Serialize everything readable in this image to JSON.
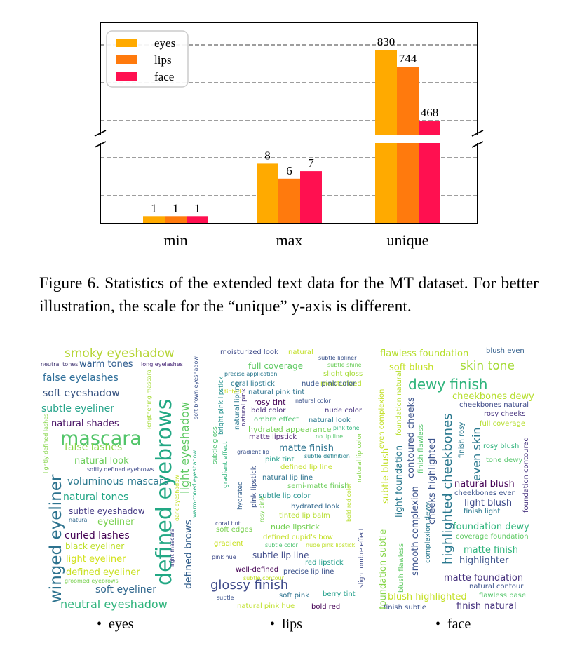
{
  "figure": {
    "caption": "Figure 6.  Statistics of the extended text data for the MT dataset. For better illustration, the scale for the “unique” y-axis is different."
  },
  "chart_data": {
    "type": "bar",
    "categories": [
      "min",
      "max",
      "unique"
    ],
    "series": [
      {
        "name": "eyes",
        "values": [
          1,
          8,
          830
        ],
        "color": "#ffaa00"
      },
      {
        "name": "lips",
        "values": [
          1,
          6,
          744
        ],
        "color": "#ff7a0d"
      },
      {
        "name": "face",
        "values": [
          1,
          7,
          468
        ],
        "color": "#ff1050"
      }
    ],
    "data_labels": [
      "1",
      "1",
      "1",
      "8",
      "6",
      "7",
      "830",
      "744",
      "468"
    ],
    "legend_position": "top-left",
    "grid": "horizontal dashed",
    "broken_axis": true,
    "note": "The unique group uses a different y scale"
  },
  "clouds": [
    {
      "label": "eyes",
      "words": [
        {
          "t": "smoky eyeshadow",
          "c": "#b5d433"
        },
        {
          "t": "warm tones",
          "c": "#2d5b8e"
        },
        {
          "t": "neutral tones",
          "c": "#3b2f6d"
        },
        {
          "t": "long eyelashes",
          "c": "#482878"
        },
        {
          "t": "false eyelashes",
          "c": "#2f6f9a"
        },
        {
          "t": "soft eyeshadow",
          "c": "#34507e"
        },
        {
          "t": "subtle eyeliner",
          "c": "#26a48a"
        },
        {
          "t": "natural shades",
          "c": "#471064"
        },
        {
          "t": "mascara",
          "c": "#52c569"
        },
        {
          "t": "false lashes",
          "c": "#8ad547"
        },
        {
          "t": "natural look",
          "c": "#6ccd5a"
        },
        {
          "t": "softly defined eyebrows",
          "c": "#3e4a89"
        },
        {
          "t": "voluminous mascara",
          "c": "#2a788e"
        },
        {
          "t": "natural tones",
          "c": "#21a685"
        },
        {
          "t": "subtle eyeshadow",
          "c": "#443983"
        },
        {
          "t": "natural",
          "c": "#31688e"
        },
        {
          "t": "eyeliner",
          "c": "#7ad151"
        },
        {
          "t": "curled lashes",
          "c": "#440154"
        },
        {
          "t": "black eyeliner",
          "c": "#bddf26"
        },
        {
          "t": "light eyeliner",
          "c": "#d2e21b"
        },
        {
          "t": "defined eyeliner",
          "c": "#c8e020"
        },
        {
          "t": "groomed eyebrows",
          "c": "#7ad151"
        },
        {
          "t": "soft eyeliner",
          "c": "#31688e"
        },
        {
          "t": "neutral eyeshadow",
          "c": "#2fb47c"
        },
        {
          "t": "winged eyeliner",
          "c": "#2c728e"
        },
        {
          "t": "defined eyebrows",
          "c": "#22a884"
        },
        {
          "t": "light eyeshadow",
          "c": "#5ec962"
        },
        {
          "t": "defined brows",
          "c": "#35608d"
        },
        {
          "t": "soft brown eyeshadow",
          "c": "#3b528b"
        },
        {
          "t": "lengthening mascara",
          "c": "#a5db36"
        },
        {
          "t": "lightly defined lashes",
          "c": "#86d549"
        },
        {
          "t": "warm-toned eyeshadow",
          "c": "#28ae80"
        },
        {
          "t": "light mascara",
          "c": "#404688"
        },
        {
          "t": "dark eyeshadow",
          "c": "#c2df23"
        }
      ]
    },
    {
      "label": "lips",
      "words": [
        {
          "t": "moisturized look",
          "c": "#3e4a89"
        },
        {
          "t": "natural",
          "c": "#c2df23"
        },
        {
          "t": "subtle lipliner",
          "c": "#3b528b"
        },
        {
          "t": "subtle shine",
          "c": "#6ccd5a"
        },
        {
          "t": "full coverage",
          "c": "#5ec962"
        },
        {
          "t": "slight gloss",
          "c": "#a5db36"
        },
        {
          "t": "precise application",
          "c": "#2a788e"
        },
        {
          "t": "moisturized",
          "c": "#b5de2b"
        },
        {
          "t": "coral lipstick",
          "c": "#2a788e"
        },
        {
          "t": "nude pink color",
          "c": "#39568c"
        },
        {
          "t": "natural pink tint",
          "c": "#2c728e"
        },
        {
          "t": "tinted",
          "c": "#d2e21b"
        },
        {
          "t": "rosy tint",
          "c": "#440154"
        },
        {
          "t": "natural color",
          "c": "#3b528b"
        },
        {
          "t": "bold color",
          "c": "#482878"
        },
        {
          "t": "nude color",
          "c": "#46327e"
        },
        {
          "t": "ombre effect",
          "c": "#4ac16d"
        },
        {
          "t": "natural look",
          "c": "#2a788e"
        },
        {
          "t": "hydrated appearance",
          "c": "#75d054"
        },
        {
          "t": "pink tone",
          "c": "#2fb47c"
        },
        {
          "t": "matte lipstick",
          "c": "#481a6c"
        },
        {
          "t": "no lip line",
          "c": "#52c569"
        },
        {
          "t": "matte finish",
          "c": "#2c728e"
        },
        {
          "t": "gradient lip",
          "c": "#3b528b"
        },
        {
          "t": "subtle definition",
          "c": "#26828e"
        },
        {
          "t": "pink tint",
          "c": "#1f9e89"
        },
        {
          "t": "defined lip line",
          "c": "#c2df23"
        },
        {
          "t": "natural lip line",
          "c": "#2c728e"
        },
        {
          "t": "semi-matte finish",
          "c": "#6ccd5a"
        },
        {
          "t": "subtle lip color",
          "c": "#21918c"
        },
        {
          "t": "hydrated look",
          "c": "#31688e"
        },
        {
          "t": "tinted lip balm",
          "c": "#b5de2b"
        },
        {
          "t": "coral tint",
          "c": "#3e4a89"
        },
        {
          "t": "soft edges",
          "c": "#7ad151"
        },
        {
          "t": "nude lipstick",
          "c": "#75d054"
        },
        {
          "t": "defined cupid's bow",
          "c": "#c2df23"
        },
        {
          "t": "gradient",
          "c": "#c8e020"
        },
        {
          "t": "subtle color",
          "c": "#4ac16d"
        },
        {
          "t": "nude pink lipstick",
          "c": "#bddf26"
        },
        {
          "t": "subtle lip line",
          "c": "#3e4a89"
        },
        {
          "t": "pink hue",
          "c": "#3e4a89"
        },
        {
          "t": "red lipstick",
          "c": "#1f9e89"
        },
        {
          "t": "well-defined",
          "c": "#440154"
        },
        {
          "t": "subtle contour",
          "c": "#c2df23"
        },
        {
          "t": "precise lip line",
          "c": "#3b528b"
        },
        {
          "t": "glossy finish",
          "c": "#3e4a89"
        },
        {
          "t": "berry tint",
          "c": "#1f9e89"
        },
        {
          "t": "subtle",
          "c": "#3b528b"
        },
        {
          "t": "soft pink",
          "c": "#2c728e"
        },
        {
          "t": "natural pink hue",
          "c": "#bddf26"
        },
        {
          "t": "bold red",
          "c": "#440154"
        },
        {
          "t": "subtle gloss",
          "c": "#4ac16d"
        },
        {
          "t": "bright pink lipstick",
          "c": "#21918c"
        },
        {
          "t": "natural lipline",
          "c": "#2a788e"
        },
        {
          "t": "natural pink",
          "c": "#46327e"
        },
        {
          "t": "gradient effect",
          "c": "#2fb47c"
        },
        {
          "t": "hydrated",
          "c": "#35608d"
        },
        {
          "t": "pink lipstick",
          "c": "#3b528b"
        },
        {
          "t": "rosy pink",
          "c": "#7ad151"
        },
        {
          "t": "natural lip color",
          "c": "#86d549"
        },
        {
          "t": "bold red color",
          "c": "#b5de2b"
        },
        {
          "t": "slight ombre effect",
          "c": "#3e4a89"
        }
      ]
    },
    {
      "label": "face",
      "words": [
        {
          "t": "flawless foundation",
          "c": "#b5de2b"
        },
        {
          "t": "blush even",
          "c": "#35608d"
        },
        {
          "t": "soft blush",
          "c": "#c2df23"
        },
        {
          "t": "skin tone",
          "c": "#a5db36"
        },
        {
          "t": "dewy finish",
          "c": "#2fb47c"
        },
        {
          "t": "cheekbones dewy",
          "c": "#b5de2b"
        },
        {
          "t": "cheekbones natural",
          "c": "#3e4a89"
        },
        {
          "t": "rosy cheeks",
          "c": "#46327e"
        },
        {
          "t": "full coverage",
          "c": "#b5de2b"
        },
        {
          "t": "rosy blush",
          "c": "#2fb47c"
        },
        {
          "t": "tone dewy",
          "c": "#52c569"
        },
        {
          "t": "natural blush",
          "c": "#440154"
        },
        {
          "t": "cheekbones even",
          "c": "#3b528b"
        },
        {
          "t": "light blush",
          "c": "#3e4a89"
        },
        {
          "t": "finish light",
          "c": "#2a788e"
        },
        {
          "t": "foundation dewy",
          "c": "#2fb47c"
        },
        {
          "t": "coverage foundation",
          "c": "#5ec962"
        },
        {
          "t": "matte finish",
          "c": "#2fb47c"
        },
        {
          "t": "highlighter",
          "c": "#3b528b"
        },
        {
          "t": "matte foundation",
          "c": "#46327e"
        },
        {
          "t": "natural contour",
          "c": "#3b528b"
        },
        {
          "t": "blush highlighted",
          "c": "#c2df23"
        },
        {
          "t": "flawless base",
          "c": "#52c569"
        },
        {
          "t": "finish subtle",
          "c": "#3b528b"
        },
        {
          "t": "finish natural",
          "c": "#46327e"
        },
        {
          "t": "even complexion",
          "c": "#c2df23"
        },
        {
          "t": "foundation natural",
          "c": "#b5de2b"
        },
        {
          "t": "subtle blush",
          "c": "#c2df23"
        },
        {
          "t": "light foundation",
          "c": "#2a788e"
        },
        {
          "t": "contoured cheeks",
          "c": "#3b528b"
        },
        {
          "t": "finish flawless",
          "c": "#52c569"
        },
        {
          "t": "cheeks highlighted",
          "c": "#3b528b"
        },
        {
          "t": "highlighted cheekbones",
          "c": "#2a788e"
        },
        {
          "t": "finish rosy",
          "c": "#2a788e"
        },
        {
          "t": "even skin",
          "c": "#2a788e"
        },
        {
          "t": "foundation contoured",
          "c": "#46327e"
        },
        {
          "t": "foundation subtle",
          "c": "#86d549"
        },
        {
          "t": "blush flawless",
          "c": "#5ec962"
        },
        {
          "t": "smooth complexion",
          "c": "#3b528b"
        },
        {
          "t": "complexion dewy",
          "c": "#2a788e"
        }
      ]
    }
  ]
}
